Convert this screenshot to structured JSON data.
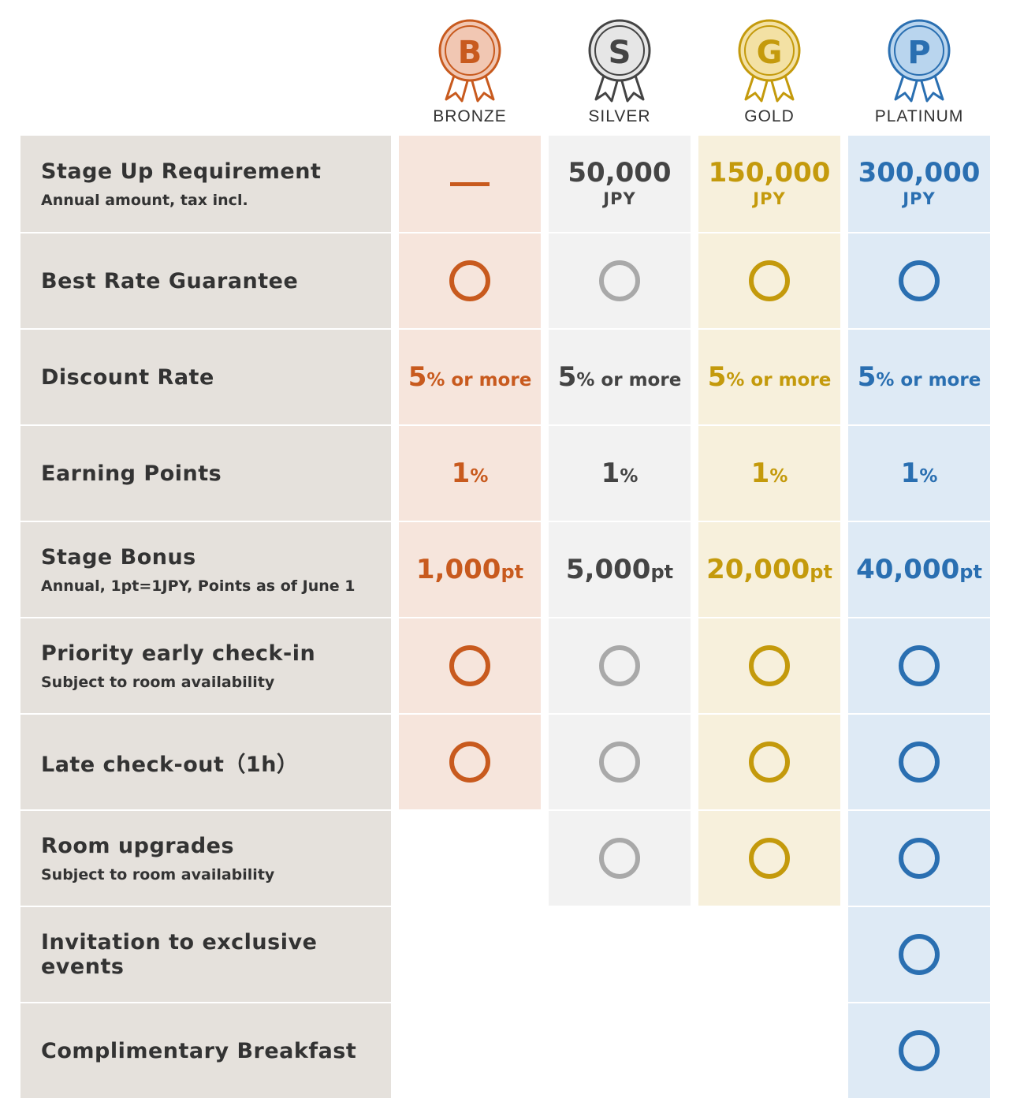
{
  "tiers": [
    {
      "letter": "B",
      "name": "BRONZE",
      "color": "#c85a1e",
      "fill": "#f1c7b3"
    },
    {
      "letter": "S",
      "name": "SILVER",
      "color": "#444444",
      "fill": "#e6e6e6"
    },
    {
      "letter": "G",
      "name": "GOLD",
      "color": "#c49a0c",
      "fill": "#f3e1a4"
    },
    {
      "letter": "P",
      "name": "PLATINUM",
      "color": "#2a6fb1",
      "fill": "#b9d5ee"
    }
  ],
  "rows": [
    {
      "label": "Stage Up Requirement",
      "sub": "Annual amount, tax incl."
    },
    {
      "label": "Best Rate Guarantee",
      "sub": ""
    },
    {
      "label": "Discount Rate",
      "sub": ""
    },
    {
      "label": "Earning Points",
      "sub": ""
    },
    {
      "label": "Stage Bonus",
      "sub": "Annual, 1pt=1JPY, Points as of June 1"
    },
    {
      "label": "Priority early check-in",
      "sub": "Subject to room availability"
    },
    {
      "label": "Late check-out（1h）",
      "sub": ""
    },
    {
      "label": "Room upgrades",
      "sub": "Subject to room availability"
    },
    {
      "label": "Invitation to exclusive events",
      "sub": ""
    },
    {
      "label": "Complimentary Breakfast",
      "sub": ""
    }
  ],
  "requirement": {
    "bronze": "",
    "silver": "50,000",
    "gold": "150,000",
    "platinum": "300,000",
    "unit": "JPY"
  },
  "discount": {
    "num": "5",
    "suffix": "% or more"
  },
  "points": {
    "num": "1",
    "suffix": "%"
  },
  "bonus": {
    "bronze": "1,000",
    "silver": "5,000",
    "gold": "20,000",
    "platinum": "40,000",
    "suffix": "pt"
  }
}
